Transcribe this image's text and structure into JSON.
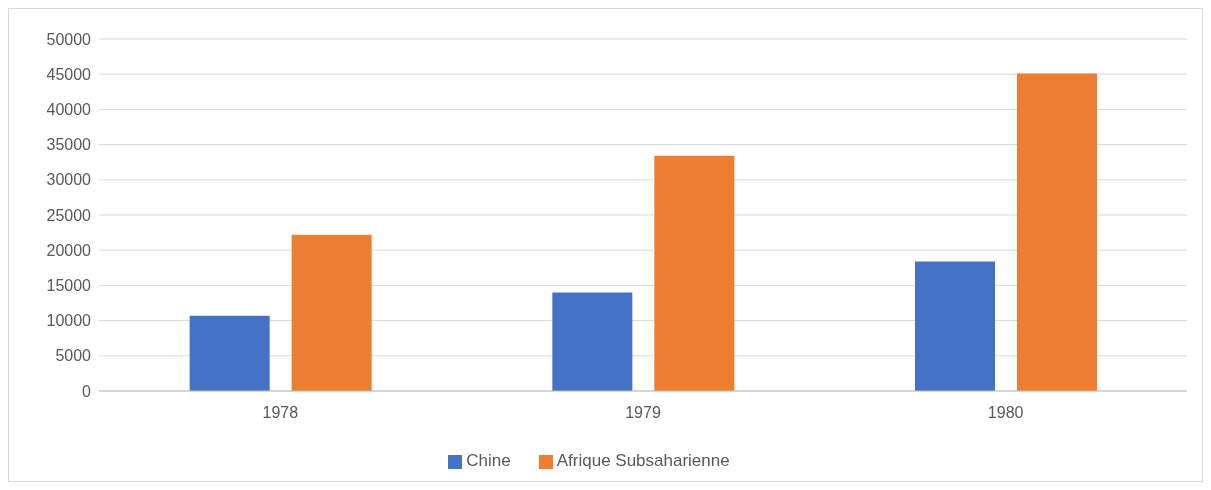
{
  "chart_data": {
    "type": "bar",
    "categories": [
      "1978",
      "1979",
      "1980"
    ],
    "series": [
      {
        "name": "Chine",
        "color": "#4472c4",
        "values": [
          10700,
          14000,
          18400
        ]
      },
      {
        "name": "Afrique Subsaharienne",
        "color": "#ed7d31",
        "values": [
          22200,
          33400,
          45100
        ]
      }
    ],
    "ylim": [
      0,
      50000
    ],
    "yticks": [
      0,
      5000,
      10000,
      15000,
      20000,
      25000,
      30000,
      35000,
      40000,
      45000,
      50000
    ],
    "grid": "y",
    "legend": "bottom"
  }
}
